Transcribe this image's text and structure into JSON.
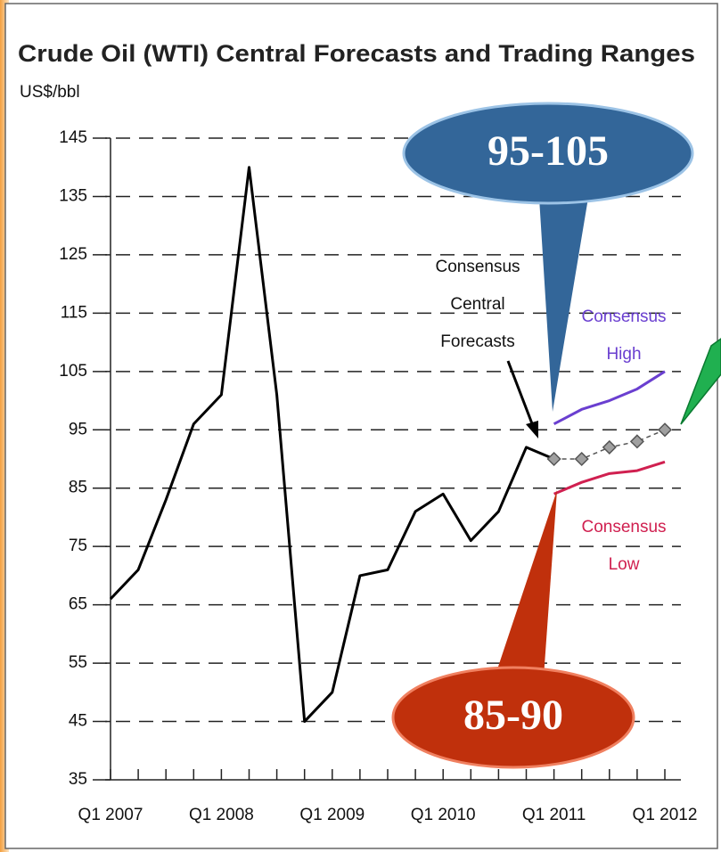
{
  "chart_data": {
    "type": "line",
    "title": "Crude Oil (WTI) Central Forecasts and Trading Ranges",
    "y_label": "US$/bbl",
    "categories": [
      "Q1 2007",
      null,
      null,
      null,
      "Q1 2008",
      null,
      null,
      null,
      "Q1 2009",
      null,
      null,
      null,
      "Q1 2010",
      null,
      null,
      null,
      "Q1 2011",
      null,
      null,
      null,
      "Q1 2012"
    ],
    "series": [
      {
        "color": "#000000",
        "values": [
          66,
          71,
          83,
          96,
          101,
          140,
          101,
          45,
          50,
          70,
          71,
          81,
          84,
          76,
          81,
          92,
          90,
          null,
          null,
          null,
          null
        ]
      },
      {
        "color": "#555555",
        "marker": "diamond",
        "dashed": true,
        "values": [
          null,
          null,
          null,
          null,
          null,
          null,
          null,
          null,
          null,
          null,
          null,
          null,
          null,
          null,
          null,
          null,
          90,
          90,
          92,
          93,
          95
        ]
      },
      {
        "color": "#6a3fd0",
        "values": [
          null,
          null,
          null,
          null,
          null,
          null,
          null,
          null,
          null,
          null,
          null,
          null,
          null,
          null,
          null,
          null,
          96,
          98.5,
          100,
          102,
          105
        ]
      },
      {
        "color": "#d02050",
        "values": [
          null,
          null,
          null,
          null,
          null,
          null,
          null,
          null,
          null,
          null,
          null,
          null,
          null,
          null,
          null,
          null,
          84,
          86,
          87.5,
          88,
          89.5
        ]
      }
    ],
    "ylim": [
      35,
      145
    ],
    "yticks": [
      35,
      45,
      55,
      65,
      75,
      85,
      95,
      105,
      115,
      125,
      135,
      145
    ],
    "grid": true,
    "central_label": [
      "Consensus",
      "Central",
      "Forecasts"
    ],
    "high_label": [
      "Consensus",
      "High"
    ],
    "low_label": [
      "Consensus",
      "Low"
    ],
    "callouts": [
      "95-105",
      "85-90"
    ]
  }
}
